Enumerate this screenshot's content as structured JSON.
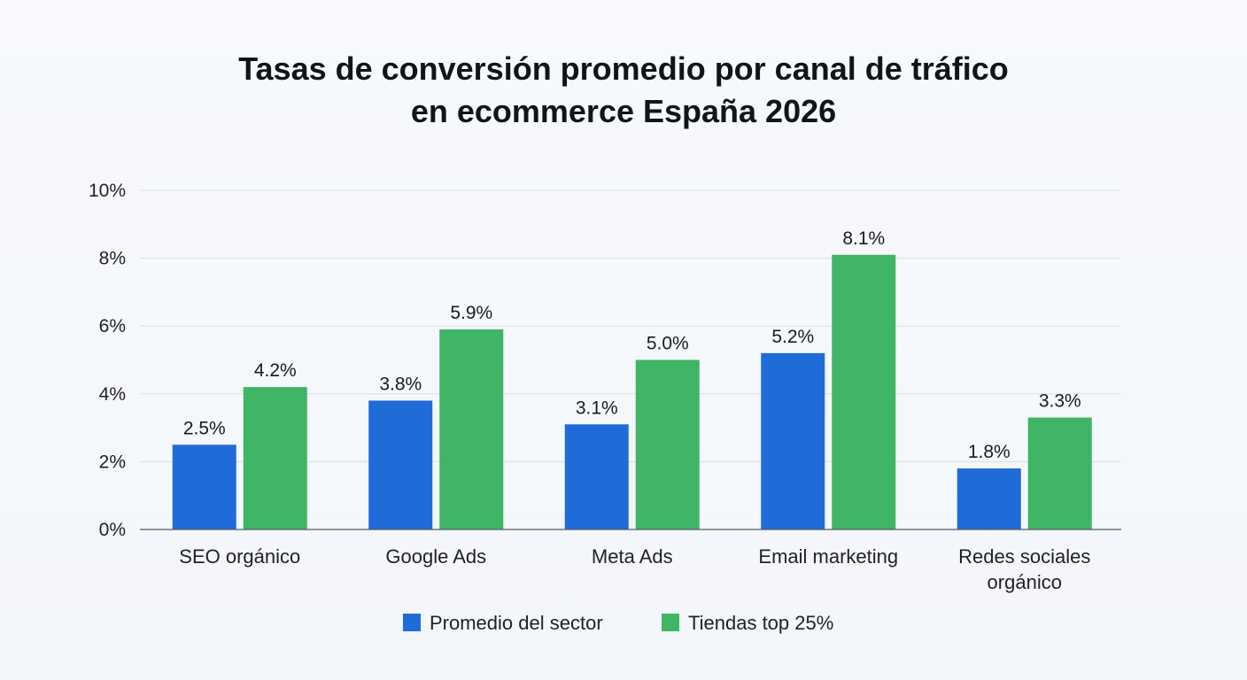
{
  "chart_data": {
    "type": "bar",
    "title_lines": [
      "Tasas de conversión promedio por canal de tráfico",
      "en ecommerce España 2026"
    ],
    "categories": [
      [
        "SEO orgánico"
      ],
      [
        "Google Ads"
      ],
      [
        "Meta Ads"
      ],
      [
        "Email marketing"
      ],
      [
        "Redes sociales",
        "orgánico"
      ]
    ],
    "series": [
      {
        "name": "Promedio del sector",
        "color": "#1f6bd8",
        "values": [
          2.5,
          3.8,
          3.1,
          5.2,
          1.8
        ],
        "labels": [
          "2.5%",
          "3.8%",
          "3.1%",
          "5.2%",
          "1.8%"
        ]
      },
      {
        "name": "Tiendas top 25%",
        "color": "#3fb565",
        "values": [
          4.2,
          5.9,
          5.0,
          8.1,
          3.3
        ],
        "labels": [
          "4.2%",
          "5.9%",
          "5.0%",
          "8.1%",
          "3.3%"
        ]
      }
    ],
    "ylim": [
      0,
      10
    ],
    "yticks": [
      0,
      2,
      4,
      6,
      8,
      10
    ],
    "ytick_labels": [
      "0%",
      "2%",
      "4%",
      "6%",
      "8%",
      "10%"
    ],
    "grid": true,
    "legend_position": "bottom-center"
  }
}
